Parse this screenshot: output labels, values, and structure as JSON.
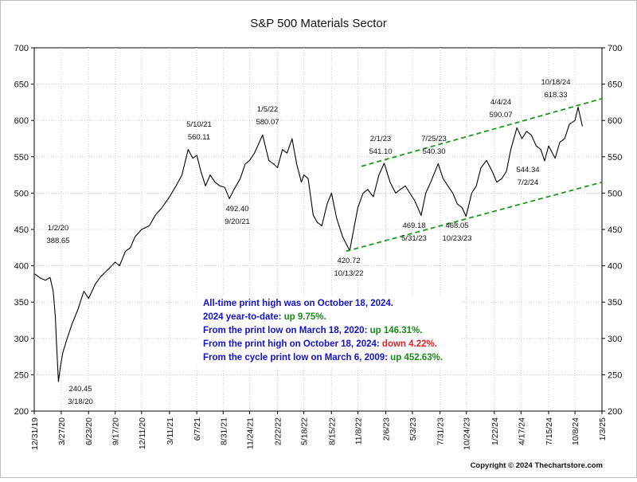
{
  "chart_data": {
    "type": "line",
    "title": "S&P 500 Materials Sector",
    "xlabel": "",
    "ylabel": "",
    "ylim": [
      200,
      700
    ],
    "y_ticks": [
      200,
      250,
      300,
      350,
      400,
      450,
      500,
      550,
      600,
      650,
      700
    ],
    "y_tick_labels": [
      "200",
      "250",
      "300",
      "350",
      "400",
      "450",
      "500",
      "550",
      "600",
      "650",
      "700"
    ],
    "x_range": [
      "2019-12-31",
      "2025-01-03"
    ],
    "x_tick_labels": [
      "12/31/19",
      "3/27/20",
      "6/23/20",
      "9/17/20",
      "12/11/20",
      "3/11/21",
      "6/7/21",
      "8/31/21",
      "11/24/21",
      "2/22/22",
      "5/18/22",
      "8/15/22",
      "11/8/22",
      "2/6/23",
      "5/3/23",
      "7/31/23",
      "10/24/23",
      "1/22/24",
      "4/17/24",
      "7/15/24",
      "10/8/24",
      "1/3/25"
    ],
    "x_tick_dates": [
      "2019-12-31",
      "2020-03-27",
      "2020-06-23",
      "2020-09-17",
      "2020-12-11",
      "2021-03-11",
      "2021-06-07",
      "2021-08-31",
      "2021-11-24",
      "2022-02-22",
      "2022-05-18",
      "2022-08-15",
      "2022-11-08",
      "2023-02-06",
      "2023-05-03",
      "2023-07-31",
      "2023-10-24",
      "2024-01-22",
      "2024-04-17",
      "2024-07-15",
      "2024-10-08",
      "2025-01-03"
    ],
    "grid": true,
    "series": [
      {
        "color": "#000000",
        "points": [
          [
            "2020-01-02",
            388.65
          ],
          [
            "2020-01-20",
            383
          ],
          [
            "2020-02-05",
            380
          ],
          [
            "2020-02-20",
            384
          ],
          [
            "2020-03-01",
            365
          ],
          [
            "2020-03-08",
            330
          ],
          [
            "2020-03-12",
            290
          ],
          [
            "2020-03-18",
            240.45
          ],
          [
            "2020-03-24",
            260
          ],
          [
            "2020-04-01",
            280
          ],
          [
            "2020-04-15",
            300
          ],
          [
            "2020-05-01",
            320
          ],
          [
            "2020-05-20",
            340
          ],
          [
            "2020-06-08",
            365
          ],
          [
            "2020-06-23",
            355
          ],
          [
            "2020-07-15",
            375
          ],
          [
            "2020-08-01",
            385
          ],
          [
            "2020-08-25",
            395
          ],
          [
            "2020-09-17",
            405
          ],
          [
            "2020-10-01",
            400
          ],
          [
            "2020-10-20",
            420
          ],
          [
            "2020-11-05",
            425
          ],
          [
            "2020-11-20",
            440
          ],
          [
            "2020-12-11",
            450
          ],
          [
            "2021-01-05",
            455
          ],
          [
            "2021-01-25",
            470
          ],
          [
            "2021-02-15",
            480
          ],
          [
            "2021-03-11",
            495
          ],
          [
            "2021-04-01",
            510
          ],
          [
            "2021-04-20",
            525
          ],
          [
            "2021-05-10",
            560.11
          ],
          [
            "2021-05-25",
            548
          ],
          [
            "2021-06-07",
            552
          ],
          [
            "2021-06-20",
            530
          ],
          [
            "2021-07-05",
            510
          ],
          [
            "2021-07-20",
            525
          ],
          [
            "2021-08-05",
            515
          ],
          [
            "2021-08-20",
            510
          ],
          [
            "2021-09-05",
            508
          ],
          [
            "2021-09-20",
            492.4
          ],
          [
            "2021-10-05",
            505
          ],
          [
            "2021-10-25",
            520
          ],
          [
            "2021-11-10",
            540
          ],
          [
            "2021-11-24",
            545
          ],
          [
            "2021-12-10",
            555
          ],
          [
            "2022-01-05",
            580.07
          ],
          [
            "2022-01-25",
            545
          ],
          [
            "2022-02-10",
            540
          ],
          [
            "2022-02-22",
            535
          ],
          [
            "2022-03-10",
            560
          ],
          [
            "2022-03-25",
            555
          ],
          [
            "2022-04-10",
            575
          ],
          [
            "2022-04-25",
            540
          ],
          [
            "2022-05-10",
            515
          ],
          [
            "2022-05-18",
            525
          ],
          [
            "2022-06-01",
            520
          ],
          [
            "2022-06-17",
            470
          ],
          [
            "2022-06-30",
            460
          ],
          [
            "2022-07-15",
            455
          ],
          [
            "2022-08-01",
            485
          ],
          [
            "2022-08-15",
            500
          ],
          [
            "2022-09-01",
            465
          ],
          [
            "2022-09-20",
            440
          ],
          [
            "2022-10-13",
            420.72
          ],
          [
            "2022-10-28",
            455
          ],
          [
            "2022-11-08",
            480
          ],
          [
            "2022-11-25",
            500
          ],
          [
            "2022-12-10",
            505
          ],
          [
            "2022-12-28",
            495
          ],
          [
            "2023-01-15",
            525
          ],
          [
            "2023-02-01",
            541.1
          ],
          [
            "2023-02-20",
            515
          ],
          [
            "2023-03-10",
            500
          ],
          [
            "2023-03-25",
            505
          ],
          [
            "2023-04-10",
            510
          ],
          [
            "2023-04-25",
            500
          ],
          [
            "2023-05-10",
            490
          ],
          [
            "2023-05-31",
            469.18
          ],
          [
            "2023-06-15",
            500
          ],
          [
            "2023-07-01",
            515
          ],
          [
            "2023-07-25",
            540.3
          ],
          [
            "2023-08-10",
            520
          ],
          [
            "2023-08-25",
            510
          ],
          [
            "2023-09-10",
            500
          ],
          [
            "2023-09-25",
            485
          ],
          [
            "2023-10-10",
            480
          ],
          [
            "2023-10-23",
            468.05
          ],
          [
            "2023-11-10",
            500
          ],
          [
            "2023-11-25",
            510
          ],
          [
            "2023-12-10",
            535
          ],
          [
            "2023-12-28",
            545
          ],
          [
            "2024-01-15",
            530
          ],
          [
            "2024-01-30",
            515
          ],
          [
            "2024-02-15",
            520
          ],
          [
            "2024-03-01",
            530
          ],
          [
            "2024-03-15",
            560
          ],
          [
            "2024-04-04",
            590.07
          ],
          [
            "2024-04-20",
            575
          ],
          [
            "2024-05-05",
            585
          ],
          [
            "2024-05-20",
            580
          ],
          [
            "2024-06-05",
            565
          ],
          [
            "2024-06-20",
            560
          ],
          [
            "2024-07-02",
            544.34
          ],
          [
            "2024-07-15",
            565
          ],
          [
            "2024-08-05",
            548
          ],
          [
            "2024-08-20",
            570
          ],
          [
            "2024-09-05",
            575
          ],
          [
            "2024-09-20",
            595
          ],
          [
            "2024-10-08",
            600
          ],
          [
            "2024-10-18",
            618.33
          ],
          [
            "2024-10-25",
            605
          ],
          [
            "2024-11-01",
            592
          ]
        ]
      },
      {
        "color": "#1a9a1a",
        "dashed": true,
        "points": [
          [
            "2022-10-01",
            420
          ],
          [
            "2025-01-03",
            515
          ]
        ]
      },
      {
        "color": "#1a9a1a",
        "dashed": true,
        "points": [
          [
            "2022-11-20",
            537
          ],
          [
            "2025-01-03",
            630
          ]
        ]
      }
    ],
    "annotations": [
      {
        "date": "1/2/20",
        "value": "388.65"
      },
      {
        "date": "3/18/20",
        "value": "240.45"
      },
      {
        "date": "5/10/21",
        "value": "560.11"
      },
      {
        "date": "9/20/21",
        "value": "492.40"
      },
      {
        "date": "1/5/22",
        "value": "580.07"
      },
      {
        "date": "10/13/22",
        "value": "420.72"
      },
      {
        "date": "2/1/23",
        "value": "541.10"
      },
      {
        "date": "5/31/23",
        "value": "469.18"
      },
      {
        "date": "7/25/23",
        "value": "540.30"
      },
      {
        "date": "10/23/23",
        "value": "468.05"
      },
      {
        "date": "4/4/24",
        "value": "590.07"
      },
      {
        "date": "7/2/24",
        "value": "544.34"
      },
      {
        "date": "10/18/24",
        "value": "618.33"
      }
    ],
    "notes": [
      {
        "text": "All-time print high was on October 18, 2024.",
        "highlight": "",
        "highlight_color": ""
      },
      {
        "text": "2024 year-to-date:",
        "highlight": "up 9.75%.",
        "highlight_color": "#1a8a1a"
      },
      {
        "text": "From the print low on March 18, 2020:",
        "highlight": "up 146.31%.",
        "highlight_color": "#1a8a1a"
      },
      {
        "text": "From the print high on October 18, 2024:",
        "highlight": "down 4.22%.",
        "highlight_color": "#e02020"
      },
      {
        "text": "From the cycle print low on March 6, 2009:",
        "highlight": "up 452.63%.",
        "highlight_color": "#1a8a1a"
      }
    ],
    "copyright": "Copyright © 2024 Thechartstore.com"
  },
  "colors": {
    "note_text": "#1010d0",
    "up": "#1a8a1a",
    "down": "#e02020",
    "trendline": "#1a9a1a"
  }
}
